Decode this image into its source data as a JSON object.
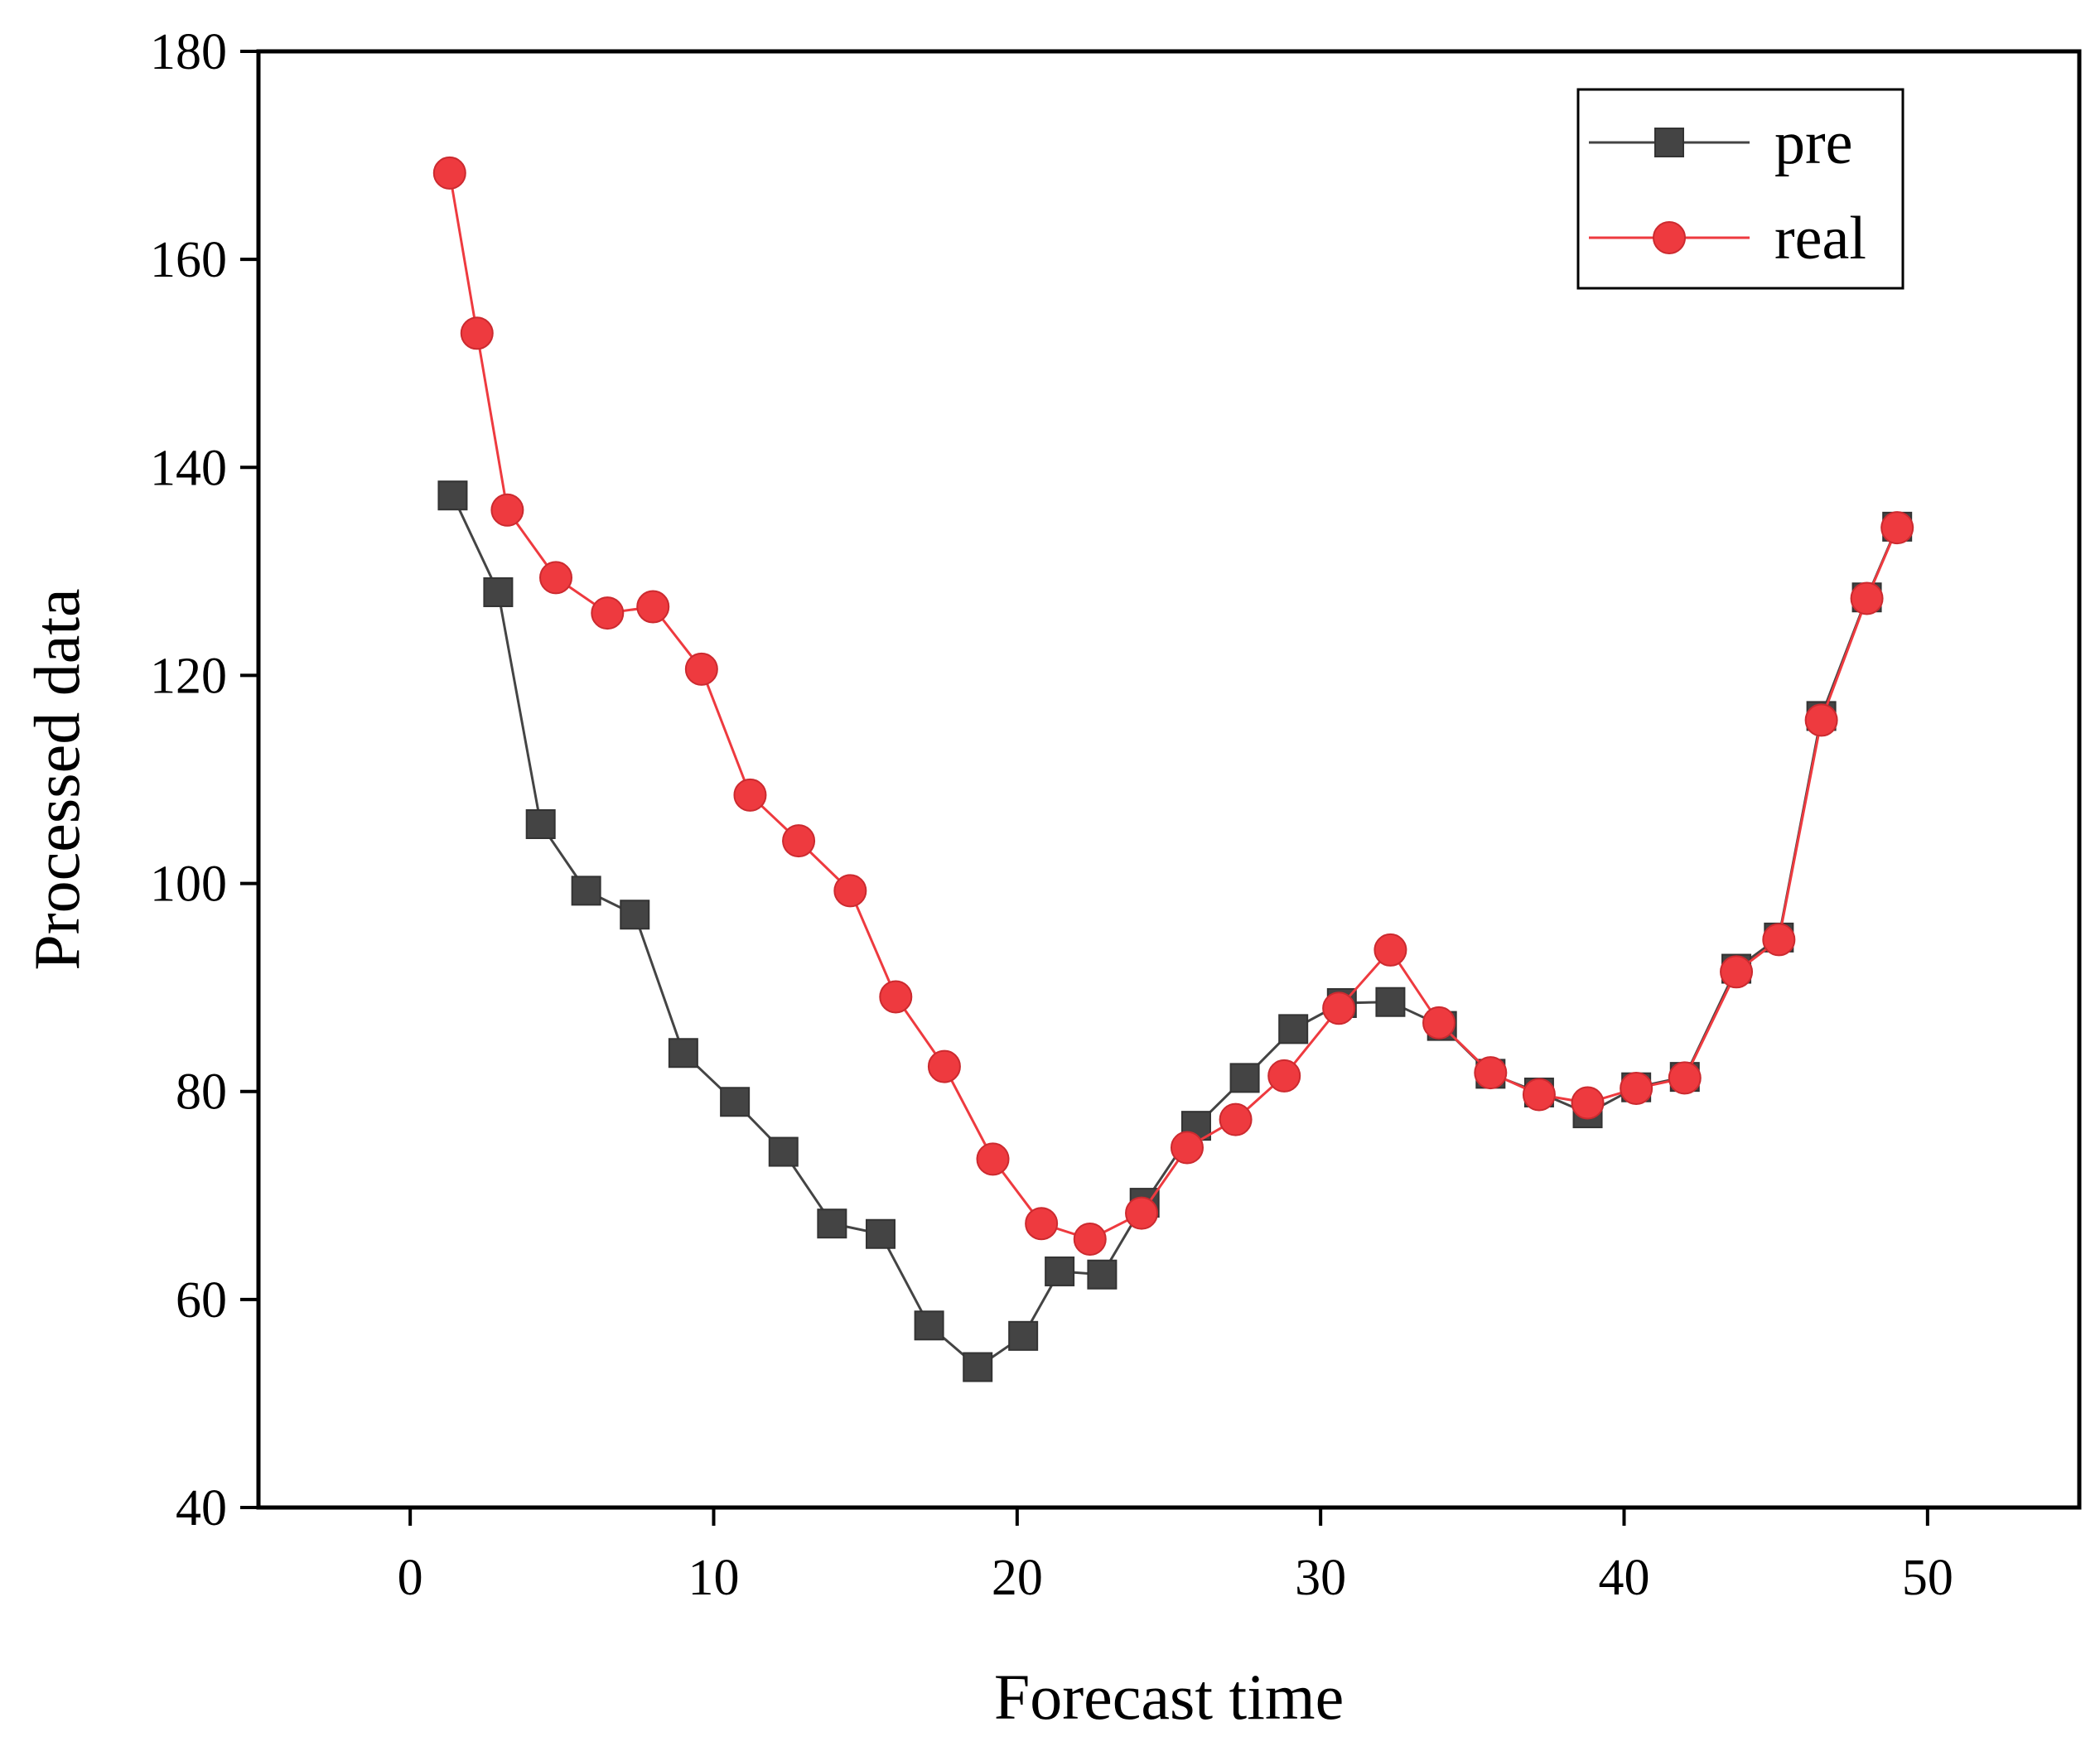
{
  "chart_data": {
    "type": "line",
    "title": "",
    "xlabel": "Forecast time",
    "ylabel": "Processed data",
    "xlim": [
      -5,
      55
    ],
    "ylim": [
      40,
      180
    ],
    "xticks": [
      0,
      10,
      20,
      30,
      40,
      50
    ],
    "yticks": [
      40,
      60,
      80,
      100,
      120,
      140,
      160,
      180
    ],
    "xtick_labels": [
      "0",
      "10",
      "20",
      "30",
      "40",
      "50"
    ],
    "ytick_labels": [
      "40",
      "60",
      "80",
      "100",
      "120",
      "140",
      "160",
      "180"
    ],
    "grid": false,
    "legend_position": "top-right",
    "series": [
      {
        "name": "pre",
        "color": "#444444",
        "marker": "square",
        "points": [
          [
            1.4,
            137.3
          ],
          [
            2.9,
            128.0
          ],
          [
            4.3,
            105.7
          ],
          [
            5.8,
            99.3
          ],
          [
            7.4,
            97.0
          ],
          [
            9.0,
            83.7
          ],
          [
            10.7,
            79.0
          ],
          [
            12.3,
            74.2
          ],
          [
            13.9,
            67.3
          ],
          [
            15.5,
            66.3
          ],
          [
            17.1,
            57.5
          ],
          [
            18.7,
            53.5
          ],
          [
            20.2,
            56.5
          ],
          [
            21.4,
            62.7
          ],
          [
            22.8,
            62.4
          ],
          [
            24.2,
            69.3
          ],
          [
            25.9,
            76.7
          ],
          [
            27.5,
            81.3
          ],
          [
            29.1,
            86.0
          ],
          [
            30.7,
            88.5
          ],
          [
            32.3,
            88.6
          ],
          [
            34.0,
            86.3
          ],
          [
            35.6,
            81.7
          ],
          [
            37.2,
            79.9
          ],
          [
            38.8,
            77.9
          ],
          [
            40.4,
            80.4
          ],
          [
            42.0,
            81.4
          ],
          [
            43.7,
            91.8
          ],
          [
            45.1,
            94.8
          ],
          [
            46.5,
            116.1
          ],
          [
            48.0,
            127.5
          ],
          [
            49.0,
            134.3
          ]
        ]
      },
      {
        "name": "real",
        "color": "#ee3a3f",
        "marker": "circle",
        "points": [
          [
            1.3,
            168.3
          ],
          [
            2.2,
            152.9
          ],
          [
            3.2,
            135.9
          ],
          [
            4.8,
            129.4
          ],
          [
            6.5,
            126.0
          ],
          [
            8.0,
            126.6
          ],
          [
            9.6,
            120.6
          ],
          [
            11.2,
            108.5
          ],
          [
            12.8,
            104.1
          ],
          [
            14.5,
            99.3
          ],
          [
            16.0,
            89.1
          ],
          [
            17.6,
            82.4
          ],
          [
            19.2,
            73.5
          ],
          [
            20.8,
            67.3
          ],
          [
            22.4,
            65.8
          ],
          [
            24.1,
            68.3
          ],
          [
            25.6,
            74.6
          ],
          [
            27.2,
            77.3
          ],
          [
            28.8,
            81.5
          ],
          [
            30.6,
            88.0
          ],
          [
            32.3,
            93.6
          ],
          [
            33.9,
            86.6
          ],
          [
            35.6,
            81.8
          ],
          [
            37.2,
            79.7
          ],
          [
            38.8,
            78.9
          ],
          [
            40.4,
            80.3
          ],
          [
            42.0,
            81.3
          ],
          [
            43.7,
            91.5
          ],
          [
            45.1,
            94.6
          ],
          [
            46.5,
            115.7
          ],
          [
            48.0,
            127.4
          ],
          [
            49.0,
            134.2
          ]
        ]
      }
    ]
  }
}
